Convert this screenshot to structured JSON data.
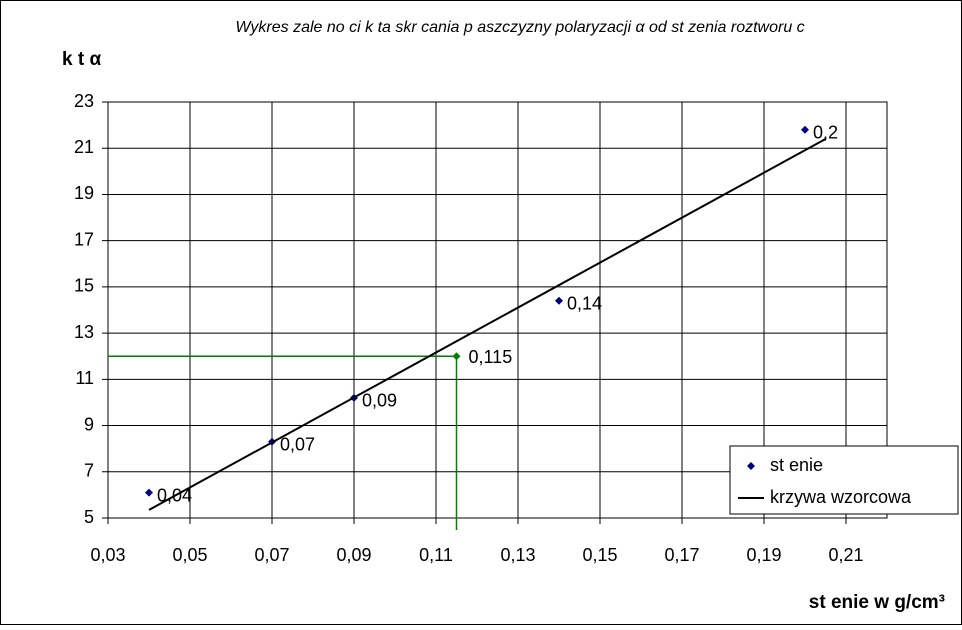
{
  "chart_data": {
    "type": "scatter",
    "title": "Wykres zale no ci k ta skr cania p aszczyzny polaryzacji  α od st zenia roztworu c",
    "y_label": "k t α",
    "x_label": "st    enie w g/cm³",
    "xlim": [
      0.03,
      0.22
    ],
    "xticks": [
      {
        "value": 0.03,
        "label": "0,03"
      },
      {
        "value": 0.05,
        "label": "0,05"
      },
      {
        "value": 0.07,
        "label": "0,07"
      },
      {
        "value": 0.09,
        "label": "0,09"
      },
      {
        "value": 0.11,
        "label": "0,11"
      },
      {
        "value": 0.13,
        "label": "0,13"
      },
      {
        "value": 0.15,
        "label": "0,15"
      },
      {
        "value": 0.17,
        "label": "0,17"
      },
      {
        "value": 0.19,
        "label": "0,19"
      },
      {
        "value": 0.21,
        "label": "0,21"
      }
    ],
    "ylim": [
      5,
      23
    ],
    "yticks": [
      5,
      7,
      9,
      11,
      13,
      15,
      17,
      19,
      21,
      23
    ],
    "grid": true,
    "series": [
      {
        "name": "st    enie",
        "color": "#000080",
        "x": [
          0.04,
          0.07,
          0.09,
          0.14,
          0.2
        ],
        "values": [
          6.1,
          8.3,
          10.2,
          14.4,
          21.8
        ],
        "x_labels": [
          "0,04",
          "0,07",
          "0,09",
          "0,14",
          "0,2"
        ]
      },
      {
        "name": "krzywa wzorcowa",
        "type": "line",
        "color": "#000000",
        "x": [
          0.04,
          0.205
        ],
        "values": [
          5.35,
          21.4
        ]
      }
    ],
    "highlight": {
      "x": 0.115,
      "value": 12.0,
      "x_label": "0,115",
      "color": "#008000"
    }
  }
}
